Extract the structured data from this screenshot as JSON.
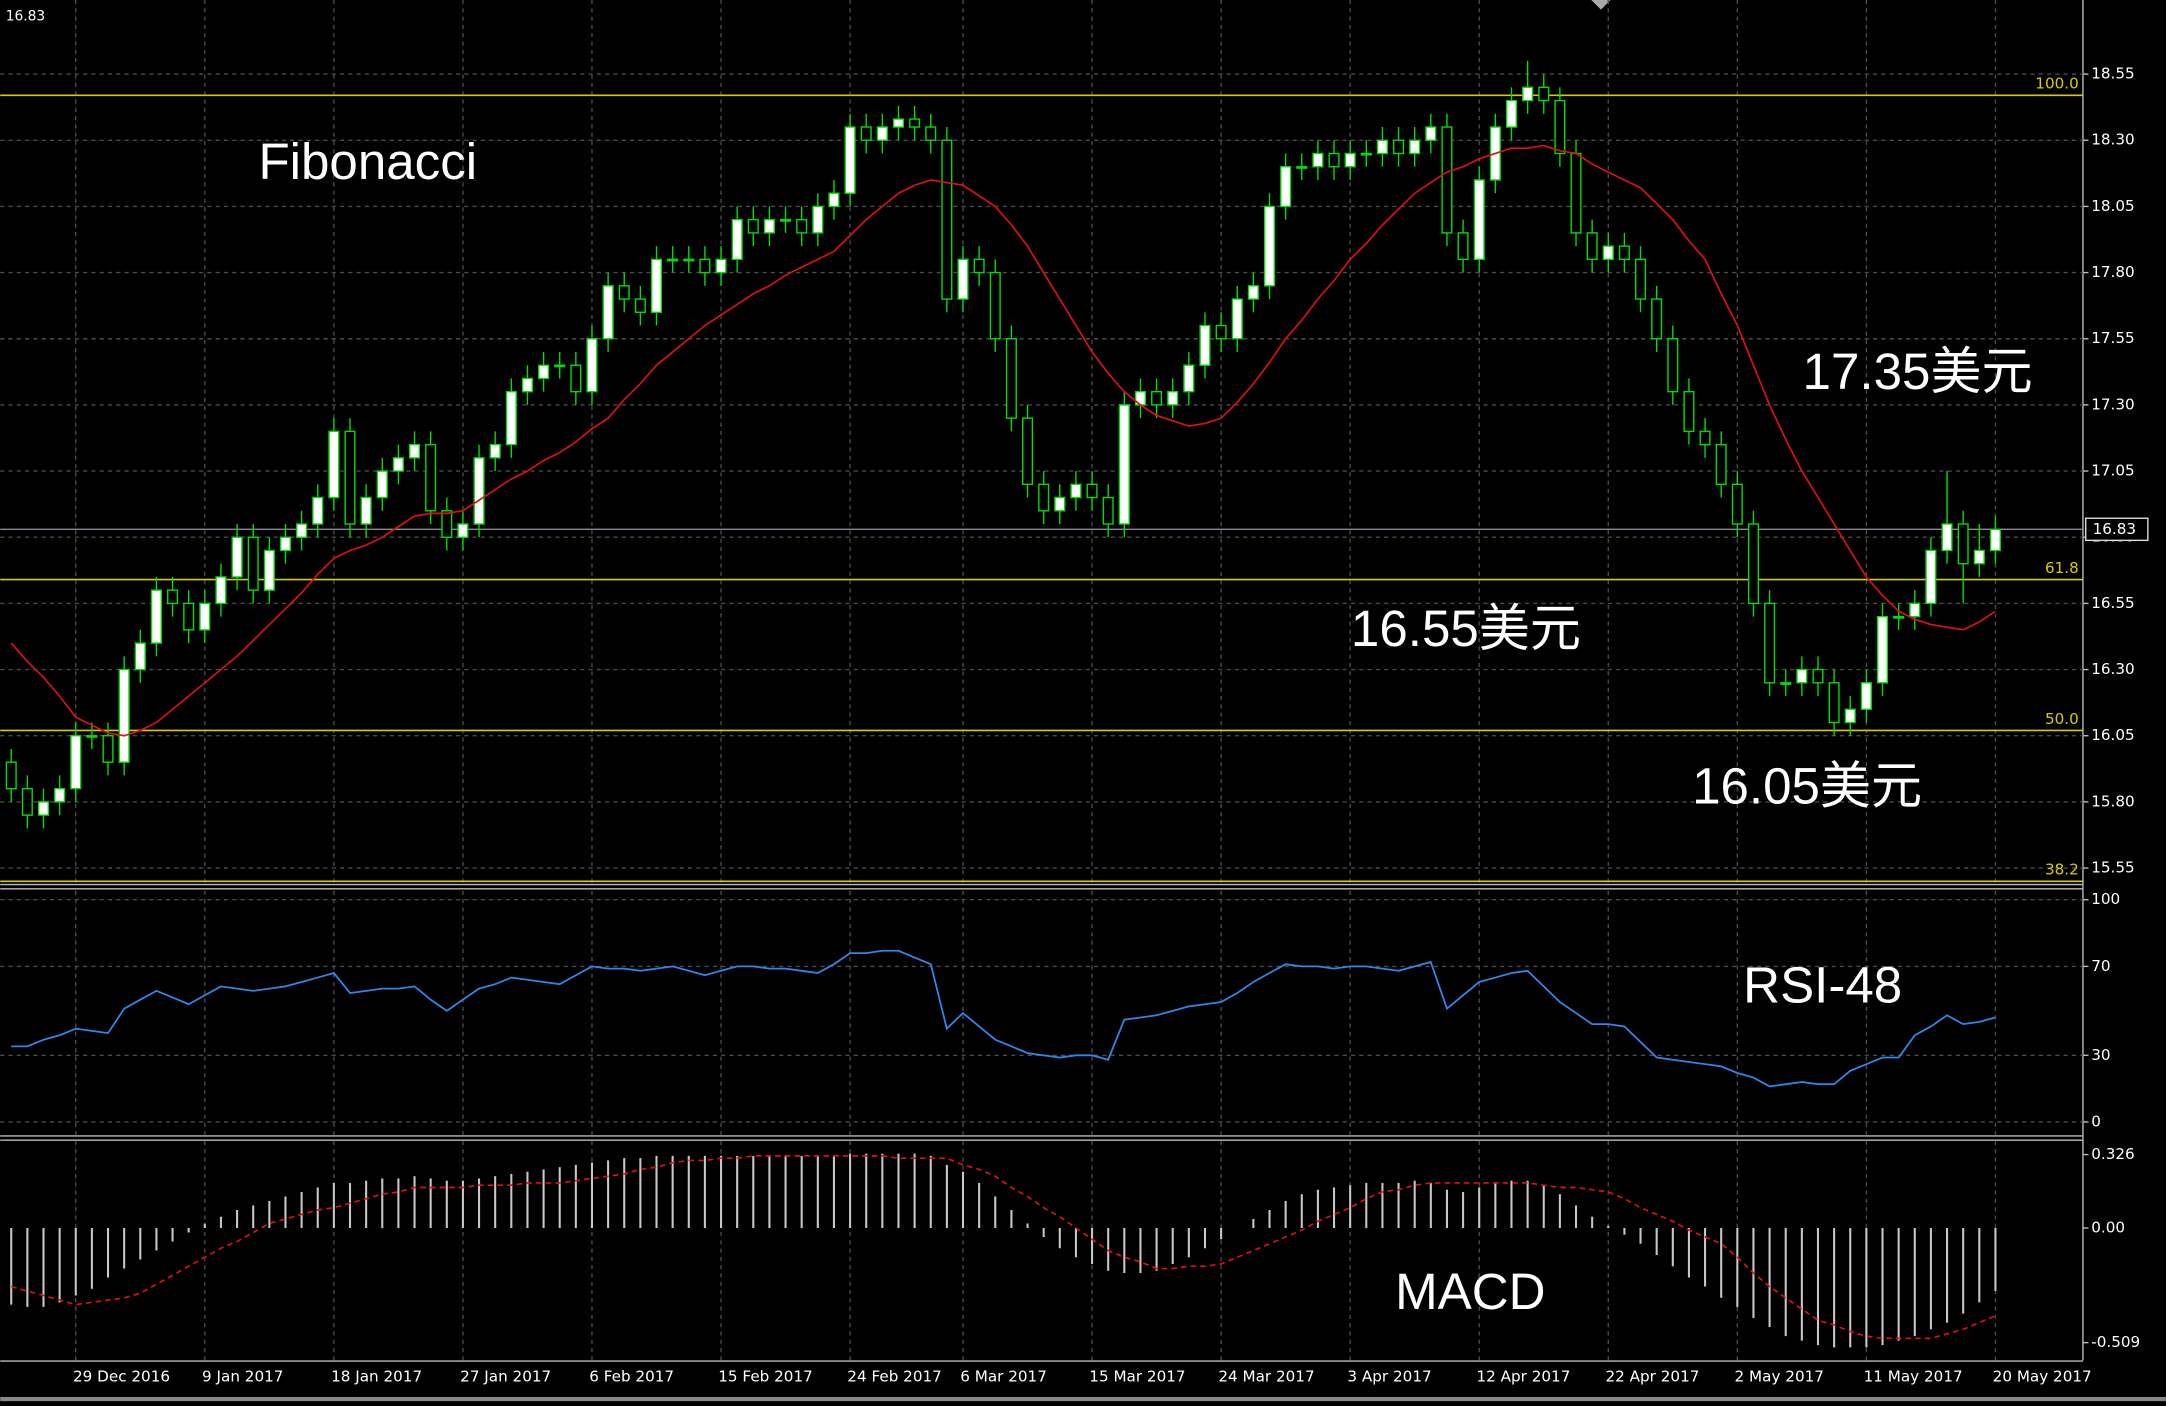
{
  "chart_data": [
    {
      "type": "candlestick",
      "title": "Fibonacci",
      "annotations": [
        "17.35美元",
        "16.55美元",
        "16.05美元"
      ],
      "last_price": 16.83,
      "categories": [
        null,
        null,
        null,
        null,
        "29 Dec 2016",
        null,
        null,
        null,
        null,
        null,
        null,
        null,
        "9 Jan 2017",
        null,
        null,
        null,
        null,
        null,
        null,
        null,
        "18 Jan 2017",
        null,
        null,
        null,
        null,
        null,
        null,
        null,
        "27 Jan 2017",
        null,
        null,
        null,
        null,
        null,
        null,
        null,
        "6 Feb 2017",
        null,
        null,
        null,
        null,
        null,
        null,
        null,
        "15 Feb 2017",
        null,
        null,
        null,
        null,
        null,
        null,
        null,
        "24 Feb 2017",
        null,
        null,
        null,
        null,
        null,
        null,
        "6 Mar 2017",
        null,
        null,
        null,
        null,
        null,
        null,
        null,
        "15 Mar 2017",
        null,
        null,
        null,
        null,
        null,
        null,
        null,
        "24 Mar 2017",
        null,
        null,
        null,
        null,
        null,
        null,
        null,
        "3 Apr 2017",
        null,
        null,
        null,
        null,
        null,
        null,
        null,
        "12 Apr 2017",
        null,
        null,
        null,
        null,
        null,
        null,
        null,
        "22 Apr 2017",
        null,
        null,
        null,
        null,
        null,
        null,
        null,
        "2 May 2017",
        null,
        null,
        null,
        null,
        null,
        null,
        null,
        "11 May 2017",
        null,
        null,
        null,
        null,
        null,
        null,
        null,
        "20 May 2017"
      ],
      "open": [
        15.95,
        15.85,
        15.75,
        15.8,
        15.85,
        16.05,
        16.05,
        15.95,
        16.3,
        16.4,
        16.6,
        16.55,
        16.45,
        16.55,
        16.65,
        16.8,
        16.6,
        16.75,
        16.8,
        16.85,
        16.95,
        17.2,
        16.85,
        16.95,
        17.05,
        17.1,
        17.15,
        16.9,
        16.8,
        16.85,
        17.1,
        17.15,
        17.35,
        17.4,
        17.45,
        17.45,
        17.35,
        17.55,
        17.75,
        17.7,
        17.65,
        17.85,
        17.85,
        17.85,
        17.8,
        17.85,
        18.0,
        17.95,
        18.0,
        18.0,
        17.95,
        18.05,
        18.1,
        18.35,
        18.3,
        18.35,
        18.38,
        18.35,
        18.3,
        17.7,
        17.85,
        17.8,
        17.55,
        17.25,
        17.0,
        16.9,
        16.95,
        17.0,
        16.95,
        16.85,
        17.3,
        17.35,
        17.3,
        17.35,
        17.45,
        17.6,
        17.55,
        17.7,
        17.75,
        18.05,
        18.2,
        18.2,
        18.25,
        18.2,
        18.25,
        18.25,
        18.3,
        18.25,
        18.3,
        18.35,
        17.95,
        17.85,
        18.15,
        18.35,
        18.45,
        18.5,
        18.45,
        18.25,
        17.95,
        17.85,
        17.9,
        17.85,
        17.7,
        17.55,
        17.35,
        17.2,
        17.15,
        17.0,
        16.85,
        16.55,
        16.25,
        16.25,
        16.3,
        16.25,
        16.1,
        16.15,
        16.25,
        16.5,
        16.5,
        16.55,
        16.75,
        16.85,
        16.7,
        16.75
      ],
      "high": [
        16.0,
        15.9,
        15.85,
        15.9,
        16.1,
        16.1,
        16.1,
        16.35,
        16.45,
        16.65,
        16.65,
        16.6,
        16.6,
        16.7,
        16.85,
        16.85,
        16.8,
        16.85,
        16.9,
        17.0,
        17.25,
        17.25,
        17.0,
        17.1,
        17.15,
        17.2,
        17.2,
        16.95,
        16.9,
        17.15,
        17.2,
        17.4,
        17.45,
        17.5,
        17.5,
        17.5,
        17.6,
        17.8,
        17.8,
        17.75,
        17.9,
        17.9,
        17.9,
        17.9,
        17.9,
        18.05,
        18.05,
        18.05,
        18.05,
        18.05,
        18.1,
        18.15,
        18.4,
        18.4,
        18.4,
        18.43,
        18.43,
        18.4,
        18.35,
        17.9,
        17.9,
        17.85,
        17.6,
        17.3,
        17.05,
        17.0,
        17.05,
        17.05,
        17.0,
        17.35,
        17.4,
        17.4,
        17.4,
        17.5,
        17.65,
        17.65,
        17.75,
        17.8,
        18.1,
        18.25,
        18.25,
        18.3,
        18.3,
        18.3,
        18.3,
        18.35,
        18.35,
        18.35,
        18.4,
        18.4,
        18.0,
        18.2,
        18.4,
        18.5,
        18.6,
        18.55,
        18.5,
        18.3,
        18.0,
        17.95,
        17.95,
        17.9,
        17.75,
        17.6,
        17.4,
        17.25,
        17.2,
        17.05,
        16.9,
        16.6,
        16.3,
        16.35,
        16.35,
        16.3,
        16.2,
        16.3,
        16.55,
        16.55,
        16.6,
        16.8,
        17.05,
        16.9,
        16.85,
        16.88
      ],
      "low": [
        15.8,
        15.7,
        15.7,
        15.75,
        15.8,
        16.0,
        15.9,
        15.9,
        16.25,
        16.35,
        16.5,
        16.4,
        16.4,
        16.5,
        16.6,
        16.55,
        16.55,
        16.7,
        16.75,
        16.8,
        16.9,
        16.8,
        16.8,
        16.9,
        17.0,
        17.05,
        16.85,
        16.75,
        16.75,
        16.8,
        17.05,
        17.1,
        17.3,
        17.35,
        17.4,
        17.3,
        17.3,
        17.5,
        17.65,
        17.6,
        17.6,
        17.8,
        17.8,
        17.75,
        17.75,
        17.8,
        17.9,
        17.9,
        17.95,
        17.9,
        17.9,
        18.0,
        18.05,
        18.25,
        18.25,
        18.3,
        18.3,
        18.25,
        17.65,
        17.65,
        17.75,
        17.5,
        17.2,
        16.95,
        16.85,
        16.85,
        16.9,
        16.9,
        16.8,
        16.8,
        17.25,
        17.25,
        17.25,
        17.3,
        17.4,
        17.5,
        17.5,
        17.65,
        17.7,
        18.0,
        18.15,
        18.15,
        18.15,
        18.15,
        18.2,
        18.2,
        18.2,
        18.2,
        18.25,
        17.9,
        17.8,
        17.8,
        18.1,
        18.3,
        18.4,
        18.4,
        18.2,
        17.9,
        17.8,
        17.8,
        17.8,
        17.65,
        17.5,
        17.3,
        17.15,
        17.1,
        16.95,
        16.8,
        16.5,
        16.2,
        16.2,
        16.2,
        16.2,
        16.05,
        16.05,
        16.1,
        16.2,
        16.45,
        16.45,
        16.5,
        16.7,
        16.55,
        16.65,
        16.7
      ],
      "close": [
        15.85,
        15.75,
        15.8,
        15.85,
        16.05,
        16.05,
        15.95,
        16.3,
        16.4,
        16.6,
        16.55,
        16.45,
        16.55,
        16.65,
        16.8,
        16.6,
        16.75,
        16.8,
        16.85,
        16.95,
        17.2,
        16.85,
        16.95,
        17.05,
        17.1,
        17.15,
        16.9,
        16.8,
        16.85,
        17.1,
        17.15,
        17.35,
        17.4,
        17.45,
        17.45,
        17.35,
        17.55,
        17.75,
        17.7,
        17.65,
        17.85,
        17.85,
        17.85,
        17.8,
        17.85,
        18.0,
        17.95,
        18.0,
        18.0,
        17.95,
        18.05,
        18.1,
        18.35,
        18.3,
        18.35,
        18.38,
        18.35,
        18.3,
        17.7,
        17.85,
        17.8,
        17.55,
        17.25,
        17.0,
        16.9,
        16.95,
        17.0,
        16.95,
        16.85,
        17.3,
        17.35,
        17.3,
        17.35,
        17.45,
        17.6,
        17.55,
        17.7,
        17.75,
        18.05,
        18.2,
        18.2,
        18.25,
        18.2,
        18.25,
        18.25,
        18.3,
        18.25,
        18.3,
        18.35,
        17.95,
        17.85,
        18.15,
        18.35,
        18.45,
        18.5,
        18.45,
        18.25,
        17.95,
        17.85,
        17.9,
        17.85,
        17.7,
        17.55,
        17.35,
        17.2,
        17.15,
        17.0,
        16.85,
        16.55,
        16.25,
        16.25,
        16.3,
        16.25,
        16.1,
        16.15,
        16.25,
        16.5,
        16.5,
        16.55,
        16.75,
        16.85,
        16.7,
        16.75,
        16.83
      ],
      "ma_color": "#e01010",
      "ma_values": [
        16.4,
        16.33,
        16.27,
        16.2,
        16.12,
        16.09,
        16.06,
        16.05,
        16.07,
        16.1,
        16.15,
        16.2,
        16.25,
        16.3,
        16.35,
        16.41,
        16.47,
        16.53,
        16.59,
        16.66,
        16.72,
        16.75,
        16.77,
        16.8,
        16.84,
        16.88,
        16.89,
        16.89,
        16.9,
        16.94,
        16.98,
        17.02,
        17.05,
        17.09,
        17.12,
        17.16,
        17.21,
        17.25,
        17.32,
        17.38,
        17.45,
        17.5,
        17.55,
        17.6,
        17.64,
        17.68,
        17.72,
        17.75,
        17.79,
        17.82,
        17.85,
        17.88,
        17.94,
        18.0,
        18.05,
        18.1,
        18.13,
        18.15,
        18.14,
        18.13,
        18.09,
        18.05,
        17.98,
        17.9,
        17.8,
        17.7,
        17.6,
        17.5,
        17.42,
        17.35,
        17.3,
        17.26,
        17.24,
        17.22,
        17.23,
        17.25,
        17.31,
        17.38,
        17.46,
        17.55,
        17.62,
        17.7,
        17.77,
        17.85,
        17.91,
        17.98,
        18.04,
        18.1,
        18.14,
        18.18,
        18.2,
        18.23,
        18.25,
        18.27,
        18.27,
        18.28,
        18.26,
        18.25,
        18.21,
        18.18,
        18.15,
        18.12,
        18.06,
        18.0,
        17.92,
        17.85,
        17.72,
        17.6,
        17.45,
        17.3,
        17.17,
        17.05,
        16.95,
        16.85,
        16.75,
        16.65,
        16.58,
        16.52,
        16.49,
        16.47,
        16.46,
        16.45,
        16.48,
        16.52
      ],
      "fib_color": "#d8cc00",
      "fib_levels": [
        {
          "value": 18.47,
          "label": "100.0"
        },
        {
          "value": 16.64,
          "label": "61.8"
        },
        {
          "value": 16.07,
          "label": "50.0"
        },
        {
          "value": 15.5,
          "label": "38.2"
        }
      ],
      "ylim": [
        15.49,
        18.83
      ],
      "yticks": [
        15.55,
        {
          "value": 15.8,
          "label": "15.80"
        },
        16.05,
        {
          "value": 16.3,
          "label": "16.30"
        },
        16.55,
        {
          "value": 16.8,
          "label": "16.80"
        },
        17.05,
        {
          "value": 17.3,
          "label": "17.30"
        },
        17.55,
        {
          "value": 17.8,
          "label": "17.80"
        },
        18.05,
        {
          "value": 18.3,
          "label": "18.30"
        },
        18.55
      ],
      "grid": true
    },
    {
      "type": "line",
      "title": "RSI-48",
      "color": "#2f86e8",
      "values": [
        34,
        34,
        37,
        39,
        42,
        41,
        40,
        51,
        55,
        59,
        56,
        53,
        57,
        61,
        60,
        59,
        60,
        61,
        63,
        65,
        67,
        58,
        59,
        60,
        60,
        61,
        55,
        50,
        55,
        60,
        62,
        65,
        64,
        63,
        62,
        66,
        70,
        69,
        69,
        68,
        69,
        70,
        68,
        66,
        68,
        70,
        70,
        69,
        69,
        68,
        67,
        71,
        76,
        76,
        77,
        77,
        74,
        71,
        42,
        49,
        43,
        37,
        34,
        31,
        30,
        29,
        30,
        30,
        28,
        46,
        47,
        48,
        50,
        52,
        53,
        54,
        58,
        63,
        67,
        71,
        70,
        70,
        69,
        70,
        70,
        69,
        68,
        70,
        72,
        51,
        57,
        63,
        65,
        67,
        68,
        61,
        54,
        49,
        44,
        44,
        43,
        36,
        29,
        28,
        27,
        26,
        25,
        22,
        20,
        16,
        17,
        18,
        17,
        17,
        23,
        26,
        29,
        29,
        39,
        43,
        48,
        44,
        45,
        47
      ],
      "ylim": [
        -6,
        104
      ],
      "yticks": [
        0,
        30,
        70,
        100
      ],
      "grid": true
    },
    {
      "type": "macd",
      "title": "MACD",
      "color": "#c8c8c8",
      "signal_color": "#e01010",
      "histogram": [
        -0.34,
        -0.35,
        -0.35,
        -0.33,
        -0.3,
        -0.27,
        -0.22,
        -0.18,
        -0.14,
        -0.1,
        -0.06,
        -0.02,
        0.02,
        0.05,
        0.08,
        0.1,
        0.12,
        0.14,
        0.16,
        0.18,
        0.2,
        0.2,
        0.21,
        0.22,
        0.22,
        0.23,
        0.22,
        0.21,
        0.21,
        0.22,
        0.23,
        0.24,
        0.25,
        0.26,
        0.27,
        0.28,
        0.29,
        0.3,
        0.31,
        0.31,
        0.32,
        0.32,
        0.32,
        0.32,
        0.32,
        0.32,
        0.32,
        0.32,
        0.32,
        0.32,
        0.32,
        0.32,
        0.33,
        0.33,
        0.33,
        0.33,
        0.33,
        0.32,
        0.28,
        0.25,
        0.2,
        0.14,
        0.08,
        0.02,
        -0.04,
        -0.09,
        -0.13,
        -0.16,
        -0.19,
        -0.2,
        -0.2,
        -0.19,
        -0.16,
        -0.13,
        -0.09,
        -0.05,
        0.0,
        0.04,
        0.08,
        0.12,
        0.15,
        0.17,
        0.18,
        0.19,
        0.2,
        0.2,
        0.2,
        0.21,
        0.2,
        0.17,
        0.16,
        0.18,
        0.2,
        0.21,
        0.21,
        0.19,
        0.15,
        0.1,
        0.05,
        0.01,
        -0.03,
        -0.07,
        -0.12,
        -0.17,
        -0.22,
        -0.26,
        -0.31,
        -0.35,
        -0.4,
        -0.44,
        -0.48,
        -0.5,
        -0.52,
        -0.53,
        -0.53,
        -0.53,
        -0.52,
        -0.5,
        -0.48,
        -0.45,
        -0.42,
        -0.38,
        -0.33,
        -0.28
      ],
      "signal": [
        -0.26,
        -0.28,
        -0.3,
        -0.32,
        -0.34,
        -0.33,
        -0.32,
        -0.31,
        -0.29,
        -0.25,
        -0.21,
        -0.17,
        -0.13,
        -0.09,
        -0.06,
        -0.02,
        0.02,
        0.04,
        0.06,
        0.08,
        0.09,
        0.11,
        0.13,
        0.15,
        0.16,
        0.18,
        0.18,
        0.18,
        0.18,
        0.19,
        0.19,
        0.19,
        0.2,
        0.2,
        0.2,
        0.21,
        0.22,
        0.23,
        0.24,
        0.26,
        0.27,
        0.29,
        0.3,
        0.3,
        0.31,
        0.31,
        0.32,
        0.32,
        0.32,
        0.32,
        0.32,
        0.32,
        0.32,
        0.32,
        0.32,
        0.31,
        0.31,
        0.31,
        0.31,
        0.28,
        0.26,
        0.23,
        0.18,
        0.14,
        0.09,
        0.05,
        0.0,
        -0.05,
        -0.1,
        -0.13,
        -0.15,
        -0.18,
        -0.18,
        -0.17,
        -0.17,
        -0.16,
        -0.13,
        -0.1,
        -0.07,
        -0.04,
        -0.01,
        0.03,
        0.06,
        0.09,
        0.13,
        0.16,
        0.17,
        0.19,
        0.2,
        0.2,
        0.2,
        0.2,
        0.2,
        0.2,
        0.2,
        0.19,
        0.18,
        0.18,
        0.17,
        0.16,
        0.13,
        0.09,
        0.06,
        0.03,
        -0.01,
        -0.04,
        -0.07,
        -0.13,
        -0.2,
        -0.26,
        -0.31,
        -0.36,
        -0.41,
        -0.43,
        -0.46,
        -0.48,
        -0.49,
        -0.49,
        -0.49,
        -0.49,
        -0.47,
        -0.45,
        -0.42,
        -0.39
      ],
      "ylim": [
        -0.588,
        0.387
      ],
      "yticks": [
        0.326,
        {
          "value": 0,
          "label": "0.00"
        },
        -0.509
      ],
      "grid": false
    }
  ]
}
